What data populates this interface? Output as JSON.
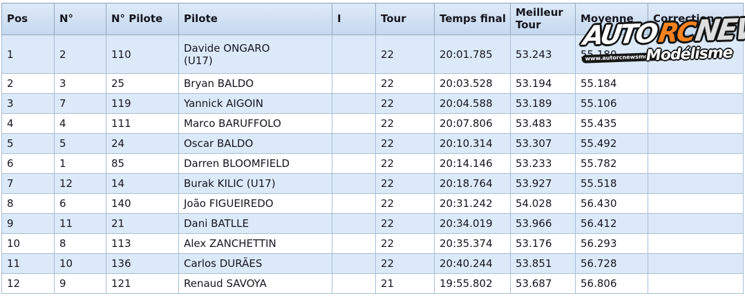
{
  "table": {
    "columns": [
      "Pos",
      "N°",
      "N° Pilote",
      "Pilote",
      "I",
      "Tour",
      "Temps final",
      "Meilleur Tour",
      "Moyenne",
      "Correction"
    ],
    "rows": [
      [
        "1",
        "2",
        "110",
        "Davide ONGARO (U17)",
        "",
        "22",
        "20:01.785",
        "53.243",
        "55.180",
        ""
      ],
      [
        "2",
        "3",
        "25",
        "Bryan BALDO",
        "",
        "22",
        "20:03.528",
        "53.194",
        "55.184",
        ""
      ],
      [
        "3",
        "7",
        "119",
        "Yannick AIGOIN",
        "",
        "22",
        "20:04.588",
        "53.189",
        "55.106",
        ""
      ],
      [
        "4",
        "4",
        "111",
        "Marco BARUFFOLO",
        "",
        "22",
        "20:07.806",
        "53.483",
        "55.435",
        ""
      ],
      [
        "5",
        "5",
        "24",
        "Oscar BALDO",
        "",
        "22",
        "20:10.314",
        "53.307",
        "55.492",
        ""
      ],
      [
        "6",
        "1",
        "85",
        "Darren BLOOMFIELD",
        "",
        "22",
        "20:14.146",
        "53.233",
        "55.782",
        ""
      ],
      [
        "7",
        "12",
        "14",
        "Burak KILIC (U17)",
        "",
        "22",
        "20:18.764",
        "53.927",
        "55.518",
        ""
      ],
      [
        "8",
        "6",
        "140",
        "João FIGUEIREDO",
        "",
        "22",
        "20:31.242",
        "54.028",
        "56.430",
        ""
      ],
      [
        "9",
        "11",
        "21",
        "Dani BATLLE",
        "",
        "22",
        "20:34.019",
        "53.966",
        "56.412",
        ""
      ],
      [
        "10",
        "8",
        "113",
        "Alex ZANCHETTIN",
        "",
        "22",
        "20:35.374",
        "53.176",
        "56.293",
        ""
      ],
      [
        "11",
        "10",
        "136",
        "Carlos DURÃES",
        "",
        "22",
        "20:40.244",
        "53.851",
        "56.728",
        ""
      ],
      [
        "12",
        "9",
        "121",
        "Renaud SAVOYA",
        "",
        "21",
        "19:55.802",
        "53.687",
        "56.806",
        ""
      ]
    ],
    "column_keys": [
      "pos",
      "num",
      "num-pilote",
      "pilote",
      "i",
      "tour",
      "temps-final",
      "meilleur-tour",
      "moyenne",
      "correction"
    ]
  },
  "logo": {
    "auto": "AUTO",
    "rc": "RC",
    "news": "NEWS",
    "modelisme": "Modélisme",
    "url": "www.autorcnewsmodelisme.fr"
  },
  "colors": {
    "header_bg": "#c9dcf0",
    "row_alt_bg": "#dce9f8",
    "cell_border": "#a8bdd5",
    "logo_orange": "#f5821f"
  }
}
